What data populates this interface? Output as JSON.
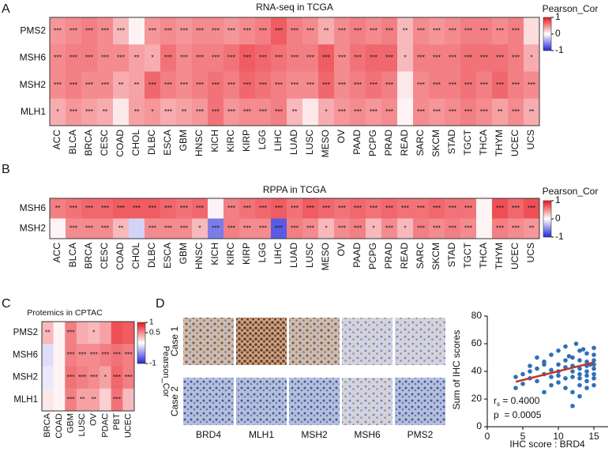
{
  "chart_data": [
    {
      "type": "heatmap",
      "panel_label": "A",
      "title": "RNA-seq in TCGA",
      "x": [
        "ACC",
        "BLCA",
        "BRCA",
        "CESC",
        "COAD",
        "CHOL",
        "DLBC",
        "ESCA",
        "GBM",
        "HNSC",
        "KICH",
        "KIRC",
        "KIRP",
        "LGG",
        "LIHC",
        "LUAD",
        "LUSC",
        "MESO",
        "OV",
        "PAAD",
        "PCPG",
        "PRAD",
        "READ",
        "SARC",
        "SKCM",
        "STAD",
        "TGCT",
        "THCA",
        "THYM",
        "UCEC",
        "UCS"
      ],
      "y": [
        "PMS2",
        "MSH6",
        "MSH2",
        "MLH1"
      ],
      "values": [
        [
          0.45,
          0.5,
          0.55,
          0.5,
          0.3,
          0.05,
          0.45,
          0.5,
          0.45,
          0.5,
          0.5,
          0.45,
          0.5,
          0.55,
          0.7,
          0.55,
          0.5,
          0.35,
          0.5,
          0.55,
          0.5,
          0.55,
          0.3,
          0.5,
          0.45,
          0.5,
          0.55,
          0.55,
          0.5,
          0.55,
          0.15
        ],
        [
          0.5,
          0.55,
          0.55,
          0.5,
          0.5,
          0.4,
          0.35,
          0.6,
          0.5,
          0.55,
          0.55,
          0.6,
          0.7,
          0.65,
          0.6,
          0.55,
          0.55,
          0.7,
          0.5,
          0.6,
          0.65,
          0.65,
          0.3,
          0.55,
          0.55,
          0.55,
          0.6,
          0.6,
          0.6,
          0.55,
          0.35
        ],
        [
          0.5,
          0.55,
          0.5,
          0.5,
          0.35,
          0.4,
          0.65,
          0.55,
          0.5,
          0.55,
          0.6,
          0.55,
          0.65,
          0.6,
          0.55,
          0.5,
          0.5,
          0.65,
          0.5,
          0.55,
          0.6,
          0.55,
          0.1,
          0.5,
          0.55,
          0.55,
          0.6,
          0.55,
          0.65,
          0.55,
          0.5
        ],
        [
          0.35,
          0.45,
          0.4,
          0.35,
          0.1,
          0.4,
          0.45,
          0.35,
          0.4,
          0.45,
          0.6,
          0.45,
          0.5,
          0.5,
          0.55,
          0.3,
          0.1,
          0.35,
          0.45,
          0.5,
          0.45,
          0.5,
          0.05,
          0.5,
          0.45,
          0.5,
          0.55,
          0.5,
          0.4,
          0.5,
          0.35
        ]
      ],
      "significance": [
        [
          "***",
          "***",
          "***",
          "***",
          "***",
          null,
          "***",
          "***",
          "***",
          "***",
          "***",
          "***",
          "***",
          "***",
          "***",
          "***",
          "***",
          "**",
          "***",
          "***",
          "***",
          "***",
          "**",
          "***",
          "***",
          "***",
          "***",
          "***",
          "***",
          "***",
          null
        ],
        [
          "***",
          "***",
          "***",
          "***",
          "***",
          "**",
          "*",
          "***",
          "***",
          "***",
          "***",
          "***",
          "***",
          "***",
          "***",
          "***",
          "***",
          "***",
          "***",
          "***",
          "***",
          "***",
          "*",
          "***",
          "***",
          "***",
          "***",
          "***",
          "***",
          "***",
          "*"
        ],
        [
          "***",
          "***",
          "***",
          "***",
          "**",
          "**",
          "***",
          "***",
          "***",
          "***",
          "***",
          "***",
          "***",
          "***",
          "***",
          "***",
          "***",
          "***",
          "***",
          "***",
          "***",
          "***",
          null,
          "***",
          "***",
          "***",
          "***",
          "***",
          "***",
          "***",
          "***"
        ],
        [
          "*",
          "***",
          "***",
          "**",
          null,
          "**",
          "*",
          "***",
          "**",
          "***",
          "***",
          "***",
          "***",
          "***",
          "***",
          "**",
          null,
          "*",
          "***",
          "***",
          "***",
          "***",
          null,
          "***",
          "***",
          "***",
          "***",
          "***",
          "**",
          "***",
          "**"
        ]
      ],
      "zlim": [
        -1,
        1
      ],
      "zticks": [
        1,
        0,
        -1
      ],
      "colorbar_label": "Pearson_Cor",
      "colorscale": {
        "low": "#2424d8",
        "mid": "#ffffff",
        "high": "#e8161e"
      }
    },
    {
      "type": "heatmap",
      "panel_label": "B",
      "title": "RPPA in TCGA",
      "x": [
        "ACC",
        "BLCA",
        "BRCA",
        "CESC",
        "COAD",
        "CHOL",
        "DLBC",
        "ESCA",
        "GBM",
        "HNSC",
        "KICH",
        "KIRC",
        "KIRP",
        "LGG",
        "LIHC",
        "LUAD",
        "LUSC",
        "MESO",
        "OV",
        "PAAD",
        "PCPG",
        "PRAD",
        "READ",
        "SARC",
        "SKCM",
        "STAD",
        "TGCT",
        "THCA",
        "THYM",
        "UCEC",
        "UCS"
      ],
      "y": [
        "MSH6",
        "MSH2"
      ],
      "values": [
        [
          0.55,
          0.6,
          0.65,
          0.65,
          0.7,
          0.7,
          0.7,
          0.65,
          0.6,
          0.65,
          0.05,
          0.55,
          0.6,
          0.65,
          0.7,
          0.6,
          0.7,
          0.65,
          0.6,
          0.65,
          0.6,
          0.65,
          0.6,
          0.6,
          0.65,
          0.6,
          0.6,
          0.05,
          0.75,
          0.65,
          0.75
        ],
        [
          0.05,
          0.5,
          0.5,
          0.5,
          0.3,
          -0.2,
          0.5,
          0.5,
          0.5,
          0.3,
          -0.6,
          0.55,
          0.5,
          0.5,
          -0.75,
          0.55,
          0.5,
          0.3,
          0.5,
          0.55,
          0.3,
          0.5,
          0.3,
          0.55,
          0.5,
          0.55,
          0.5,
          0.05,
          0.55,
          0.5,
          0.45
        ]
      ],
      "significance": [
        [
          "**",
          "***",
          "***",
          "***",
          "***",
          "***",
          "***",
          "***",
          "***",
          "***",
          null,
          "***",
          "***",
          "***",
          "***",
          "***",
          "***",
          "***",
          "***",
          "***",
          "***",
          "***",
          "***",
          "***",
          "***",
          "***",
          "***",
          null,
          "***",
          "***",
          "***"
        ],
        [
          null,
          "***",
          "***",
          "***",
          "**",
          null,
          "***",
          "***",
          "***",
          "*",
          "***",
          "***",
          "***",
          "***",
          "***",
          "***",
          "***",
          "*",
          "***",
          "***",
          "*",
          "***",
          "*",
          "***",
          "***",
          "***",
          "***",
          null,
          "***",
          "***",
          "**"
        ]
      ],
      "zlim": [
        -1,
        1
      ],
      "zticks": [
        1,
        0,
        -1
      ],
      "colorbar_label": "Pearson_Cor",
      "colorscale": {
        "low": "#2424d8",
        "mid": "#ffffff",
        "high": "#e8161e"
      }
    },
    {
      "type": "heatmap",
      "panel_label": "C",
      "title": "Protemics in CPTAC",
      "x": [
        "BRCA",
        "COAD",
        "GBM",
        "LUSC",
        "OV",
        "PDAC",
        "PBT",
        "UCEC"
      ],
      "y": [
        "PMS2",
        "MSH6",
        "MSH2",
        "MLH1"
      ],
      "values": [
        [
          0.3,
          0.05,
          0.55,
          0.35,
          0.3,
          0.4,
          0.75,
          0.7
        ],
        [
          -0.15,
          0.05,
          0.55,
          0.5,
          0.5,
          0.55,
          0.6,
          0.55
        ],
        [
          -0.1,
          0.05,
          0.6,
          0.55,
          0.5,
          0.4,
          0.65,
          0.55
        ],
        [
          0.1,
          0.05,
          0.55,
          0.4,
          0.4,
          0.2,
          0.6,
          0.3
        ]
      ],
      "significance": [
        [
          "**",
          null,
          "***",
          null,
          "*",
          null,
          null,
          null
        ],
        [
          null,
          null,
          "***",
          "***",
          "***",
          "***",
          "***",
          "***"
        ],
        [
          null,
          null,
          "***",
          "***",
          "***",
          "*",
          "***",
          "***"
        ],
        [
          null,
          null,
          "***",
          "**",
          "**",
          null,
          "***",
          null
        ]
      ],
      "zlim": [
        -1,
        1
      ],
      "zticks": [
        1,
        0.5,
        -1
      ],
      "colorbar_label": "Pearson_Cor",
      "colorscale": {
        "low": "#2424d8",
        "mid": "#ffffff",
        "high": "#e8161e"
      }
    },
    {
      "type": "scatter",
      "x": [
        4,
        4,
        5,
        5,
        6,
        6,
        6,
        7,
        7,
        7,
        8,
        8,
        8,
        8,
        9,
        9,
        9,
        9,
        10,
        10,
        10,
        10,
        10,
        11,
        11,
        11,
        11,
        11,
        12,
        12,
        12,
        12,
        12,
        12,
        13,
        13,
        13,
        13,
        13,
        13,
        13,
        14,
        14,
        14,
        14,
        14,
        14,
        14,
        15,
        15,
        15,
        15,
        15,
        15,
        15,
        15,
        12.5,
        13.5,
        14.5,
        11.5
      ],
      "y": [
        36,
        28,
        38,
        31,
        40,
        35,
        44,
        42,
        33,
        50,
        38,
        45,
        47,
        25,
        41,
        36,
        52,
        30,
        45,
        40,
        55,
        37,
        32,
        48,
        43,
        28,
        35,
        58,
        50,
        44,
        40,
        36,
        25,
        15,
        55,
        48,
        42,
        38,
        35,
        30,
        22,
        53,
        47,
        44,
        40,
        37,
        33,
        28,
        57,
        52,
        48,
        45,
        42,
        38,
        35,
        30,
        60,
        56,
        45,
        51
      ],
      "color": "#2f6fb8",
      "trend": {
        "x": [
          4,
          15
        ],
        "y": [
          32.5,
          46.5
        ],
        "color": "#c0392b"
      },
      "xlim": [
        0,
        17
      ],
      "xticks": [
        0,
        5,
        10,
        15
      ],
      "ylim": [
        0,
        80
      ],
      "yticks": [
        0,
        20,
        40,
        60,
        80
      ],
      "x_label": "IHC score : BRD4",
      "y_label": "Sum of IHC scores",
      "stats": {
        "r": "r",
        "r_sub": "s",
        "r_value": " = 0.4000",
        "p": "p  = 0.0005"
      }
    }
  ],
  "image_grid": {
    "panel_label": "D",
    "rows": [
      "Case 1",
      "Case 2"
    ],
    "columns": [
      "BRD4",
      "MLH1",
      "MSH2",
      "MSH6",
      "PMS2"
    ]
  }
}
